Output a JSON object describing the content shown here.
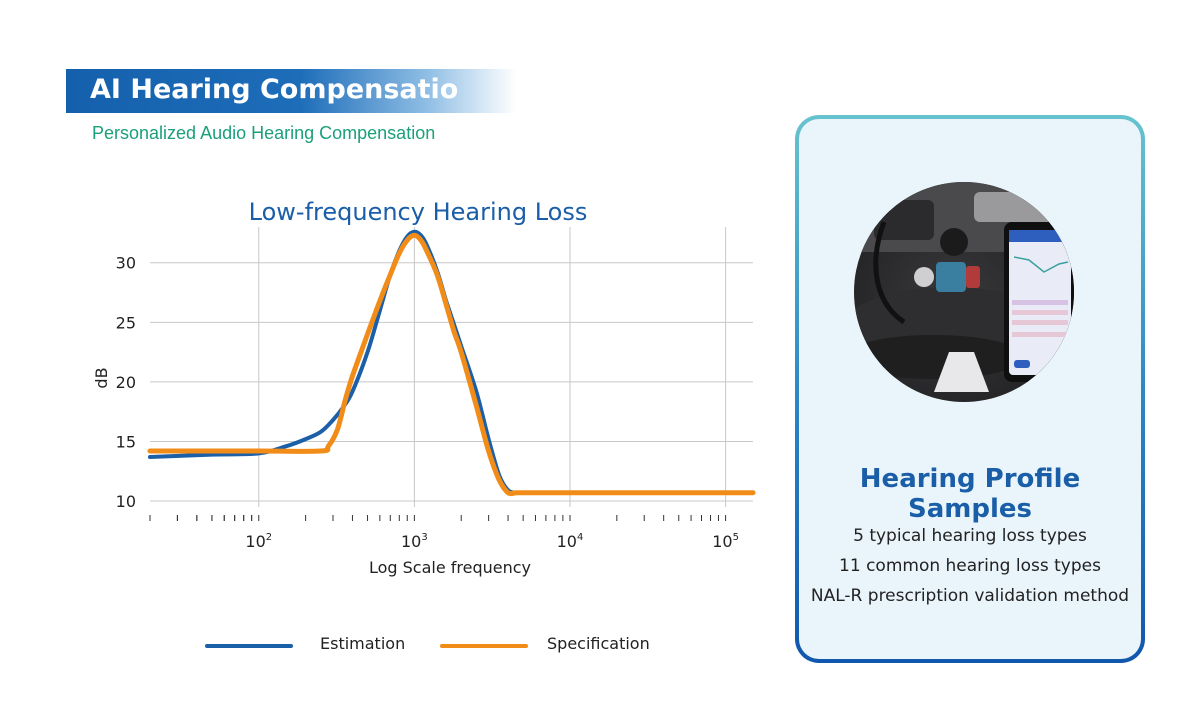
{
  "header": {
    "title": "AI Hearing Compensatio",
    "subtitle": "Personalized Audio Hearing Compensation"
  },
  "colors": {
    "estimation": "#1a5fa8",
    "specification": "#f28c18",
    "title_blue": "#1a5ea8",
    "subtitle_green": "#1aa07a"
  },
  "chart_data": {
    "type": "line",
    "title": "Low-frequency Hearing Loss",
    "xlabel": "Log Scale frequency",
    "ylabel": "dB",
    "x_scale": "log",
    "xlim": [
      20,
      150000
    ],
    "ylim": [
      9.5,
      33
    ],
    "xticks": [
      {
        "value": 100,
        "base": "10",
        "exp": "2"
      },
      {
        "value": 1000,
        "base": "10",
        "exp": "3"
      },
      {
        "value": 10000,
        "base": "10",
        "exp": "4"
      },
      {
        "value": 100000,
        "base": "10",
        "exp": "5"
      }
    ],
    "yticks": [
      10,
      15,
      20,
      25,
      30
    ],
    "grid": true,
    "legend_position": "bottom",
    "series": [
      {
        "name": "Estimation",
        "color": "#1a5fa8",
        "x": [
          20,
          50,
          100,
          150,
          200,
          250,
          300,
          350,
          400,
          500,
          600,
          700,
          800,
          900,
          1000,
          1100,
          1200,
          1400,
          1600,
          1800,
          2000,
          2500,
          3000,
          3500,
          4000,
          4500,
          5000,
          10000,
          100000,
          150000
        ],
        "y": [
          13.7,
          13.9,
          14.0,
          14.6,
          15.2,
          15.8,
          16.8,
          17.9,
          19.2,
          22.5,
          26.0,
          29.0,
          31.0,
          32.2,
          32.6,
          32.3,
          31.5,
          29.3,
          26.8,
          24.8,
          23.0,
          19.2,
          15.2,
          12.2,
          10.9,
          10.7,
          10.7,
          10.7,
          10.7,
          10.7
        ]
      },
      {
        "name": "Specification",
        "color": "#f28c18",
        "x": [
          20,
          100,
          250,
          280,
          320,
          360,
          400,
          500,
          600,
          700,
          800,
          900,
          1000,
          1100,
          1200,
          1400,
          1600,
          1800,
          2000,
          2500,
          3000,
          3500,
          4000,
          4500,
          5000,
          10000,
          100000,
          150000
        ],
        "y": [
          14.2,
          14.2,
          14.2,
          14.6,
          16.0,
          18.5,
          20.5,
          24.0,
          26.8,
          29.0,
          30.8,
          31.9,
          32.3,
          31.9,
          31.0,
          29.0,
          26.5,
          24.2,
          22.5,
          18.0,
          14.2,
          11.8,
          10.7,
          10.7,
          10.7,
          10.7,
          10.7,
          10.7
        ]
      }
    ]
  },
  "card": {
    "title": "Hearing Profile Samples",
    "lines": [
      "5 typical hearing loss types",
      "11 common hearing loss types",
      "NAL-R prescription validation method"
    ]
  }
}
